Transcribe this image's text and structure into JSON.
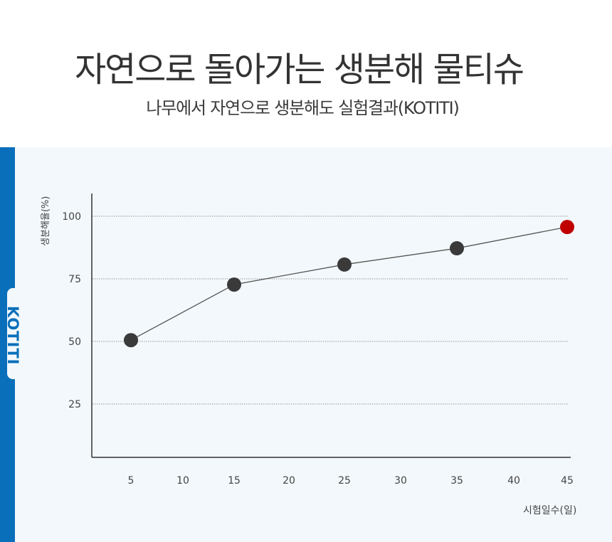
{
  "header": {
    "title": "자연으로 돌아가는 생분해 물티슈",
    "subtitle": "나무에서 자연으로 생분해도 실험결과(KOTITI)"
  },
  "brand": {
    "tab_label": "KOTITI",
    "sidebar_color": "#0a6fba",
    "panel_bg": "#f3f8fc"
  },
  "chart_data": {
    "type": "line",
    "title": "나무에서 자연으로 생분해도 실험결과(KOTITI)",
    "xlabel": "시험일수(일)",
    "ylabel": "생분해율(%)",
    "x_ticks": [
      5,
      10,
      15,
      20,
      25,
      30,
      35,
      40,
      45
    ],
    "y_ticks": [
      25,
      50,
      75,
      100
    ],
    "ylim": [
      7,
      108
    ],
    "grid": "horizontal-dotted",
    "legend": "none",
    "series": [
      {
        "name": "생분해율",
        "x": [
          5,
          15,
          25,
          35,
          45
        ],
        "values": [
          50.5,
          72.7,
          80.7,
          87.2,
          95.7
        ],
        "marker_color": "#3a3a3a",
        "highlight_last_color": "#c00000"
      }
    ]
  }
}
